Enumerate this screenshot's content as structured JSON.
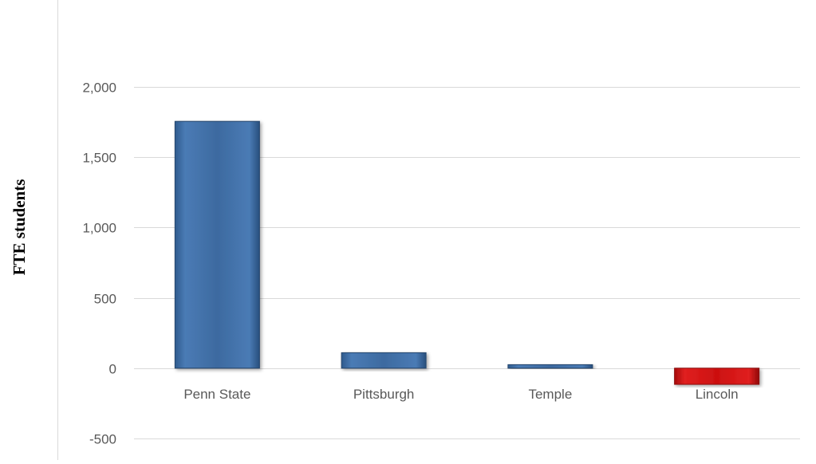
{
  "chart_data": {
    "type": "bar",
    "title": "",
    "xlabel": "",
    "ylabel": "FTE students",
    "categories": [
      "Penn State",
      "Pittsburgh",
      "Temple",
      "Lincoln"
    ],
    "values": [
      1755,
      110,
      25,
      -115
    ],
    "bar_colors": [
      "#3d6aa0",
      "#3d6aa0",
      "#3d6aa0",
      "#cc1010"
    ],
    "ylim": [
      -500,
      2000
    ],
    "yticks": [
      2000,
      1500,
      1000,
      500,
      0,
      -500
    ],
    "ytick_labels": [
      "2,000",
      "1,500",
      "1,000",
      "500",
      "0",
      "-500"
    ],
    "grid": true,
    "legend": "none"
  }
}
